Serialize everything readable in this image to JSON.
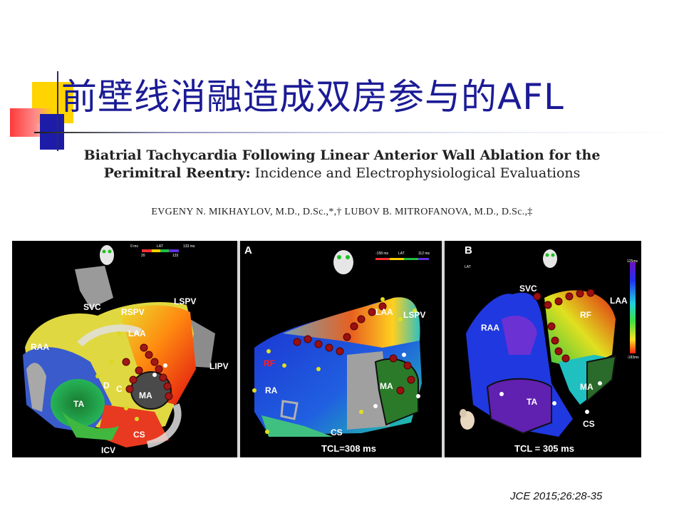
{
  "slide": {
    "title": "前壁线消融造成双房参与的AFL"
  },
  "paper": {
    "title_bold": "Biatrial Tachycardia Following Linear Anterior Wall Ablation for the Perimitral Reentry:",
    "title_normal": " Incidence and Electrophysiological Evaluations",
    "authors": "EVGENY N. MIKHAYLOV, M.D., D.Sc.,*,† LUBOV B. MITROFANOVA, M.D., D.Sc.,‡"
  },
  "figure": {
    "left_panel": {
      "labels": {
        "svc": "SVC",
        "rspv": "RSPV",
        "lspv": "LSPV",
        "laa": "LAA",
        "raa": "RAA",
        "lipv": "LIPV",
        "d": "D",
        "c": "C",
        "ma": "MA",
        "ta": "TA",
        "cs": "CS",
        "icv": "ICV"
      },
      "legend": {
        "title": "LAT",
        "min_top": "0 ms",
        "max_top": "133 ms",
        "min": "20",
        "max": "133"
      }
    },
    "panel_a": {
      "letter": "A",
      "labels": {
        "laa": "LAA",
        "lspv": "LSPV",
        "rf": "RF",
        "ra": "RA",
        "ma": "MA",
        "cs": "CS"
      },
      "tcl": "TCL=308 ms",
      "legend": {
        "title": "LAT",
        "min": "-158 ms",
        "max": "112 ms"
      }
    },
    "panel_b": {
      "letter": "B",
      "labels": {
        "svc": "SVC",
        "laa": "LAA",
        "raa": "RAA",
        "rf": "RF",
        "ma": "MA",
        "ta": "TA",
        "cs": "CS"
      },
      "tcl": "TCL = 305 ms",
      "legend": {
        "title": "LAT",
        "max": "125ms",
        "min": "-183ms"
      }
    }
  },
  "citation": "JCE 2015;26:28-35",
  "colors": {
    "title": "#1b1b96",
    "accent_yellow": "#ffd400",
    "accent_red": "#ff3a3a",
    "accent_blue": "#1c1ca8"
  }
}
